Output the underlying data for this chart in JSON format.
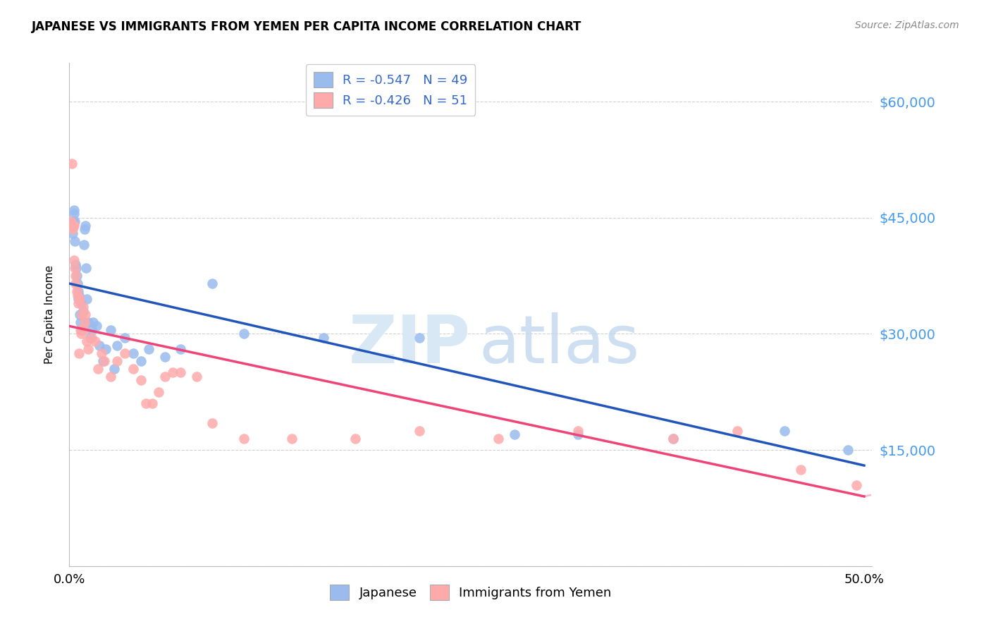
{
  "title": "JAPANESE VS IMMIGRANTS FROM YEMEN PER CAPITA INCOME CORRELATION CHART",
  "source": "Source: ZipAtlas.com",
  "ylabel": "Per Capita Income",
  "legend_label1": "Japanese",
  "legend_label2": "Immigrants from Yemen",
  "blue_color": "#99BBEE",
  "pink_color": "#FFAAAA",
  "blue_line_color": "#2255BB",
  "pink_line_color": "#EE4477",
  "ytick_color": "#4499EE",
  "yticks": [
    0,
    15000,
    30000,
    45000,
    60000
  ],
  "ytick_labels": [
    "",
    "$15,000",
    "$30,000",
    "$45,000",
    "$60,000"
  ],
  "blue_scatter_x": [
    0.002,
    0.0025,
    0.0028,
    0.003,
    0.0033,
    0.0035,
    0.004,
    0.0042,
    0.0045,
    0.005,
    0.0055,
    0.0058,
    0.006,
    0.0065,
    0.007,
    0.0075,
    0.008,
    0.0085,
    0.009,
    0.0095,
    0.01,
    0.0105,
    0.011,
    0.012,
    0.013,
    0.014,
    0.015,
    0.017,
    0.019,
    0.021,
    0.023,
    0.026,
    0.028,
    0.03,
    0.035,
    0.04,
    0.045,
    0.05,
    0.06,
    0.07,
    0.09,
    0.11,
    0.16,
    0.22,
    0.28,
    0.32,
    0.38,
    0.45,
    0.49
  ],
  "blue_scatter_y": [
    43000,
    44500,
    45500,
    46000,
    44500,
    42000,
    39000,
    38500,
    37500,
    36500,
    35500,
    34500,
    35000,
    32500,
    31500,
    34000,
    30500,
    33000,
    41500,
    43500,
    44000,
    38500,
    34500,
    31500,
    29500,
    30500,
    31500,
    31000,
    28500,
    26500,
    28000,
    30500,
    25500,
    28500,
    29500,
    27500,
    26500,
    28000,
    27000,
    28000,
    36500,
    30000,
    29500,
    29500,
    17000,
    17000,
    16500,
    17500,
    15000
  ],
  "pink_scatter_x": [
    0.001,
    0.0015,
    0.002,
    0.0025,
    0.0028,
    0.003,
    0.0033,
    0.0038,
    0.004,
    0.0045,
    0.005,
    0.0055,
    0.006,
    0.0065,
    0.007,
    0.0075,
    0.008,
    0.0085,
    0.009,
    0.0095,
    0.01,
    0.011,
    0.012,
    0.014,
    0.016,
    0.018,
    0.02,
    0.022,
    0.026,
    0.03,
    0.035,
    0.04,
    0.045,
    0.048,
    0.052,
    0.056,
    0.06,
    0.065,
    0.07,
    0.08,
    0.09,
    0.11,
    0.14,
    0.18,
    0.22,
    0.27,
    0.32,
    0.38,
    0.42,
    0.46,
    0.495
  ],
  "pink_scatter_y": [
    44500,
    52000,
    43500,
    44000,
    44000,
    39500,
    38500,
    37500,
    36500,
    35500,
    35000,
    34000,
    27500,
    34500,
    30500,
    30000,
    32500,
    33500,
    30500,
    31500,
    32500,
    29000,
    28000,
    29500,
    29000,
    25500,
    27500,
    26500,
    24500,
    26500,
    27500,
    25500,
    24000,
    21000,
    21000,
    22500,
    24500,
    25000,
    25000,
    24500,
    18500,
    16500,
    16500,
    16500,
    17500,
    16500,
    17500,
    16500,
    17500,
    12500,
    10500
  ],
  "xlim": [
    0.0,
    0.505
  ],
  "ylim": [
    0,
    65000
  ],
  "background_color": "#ffffff",
  "grid_color": "#cccccc"
}
